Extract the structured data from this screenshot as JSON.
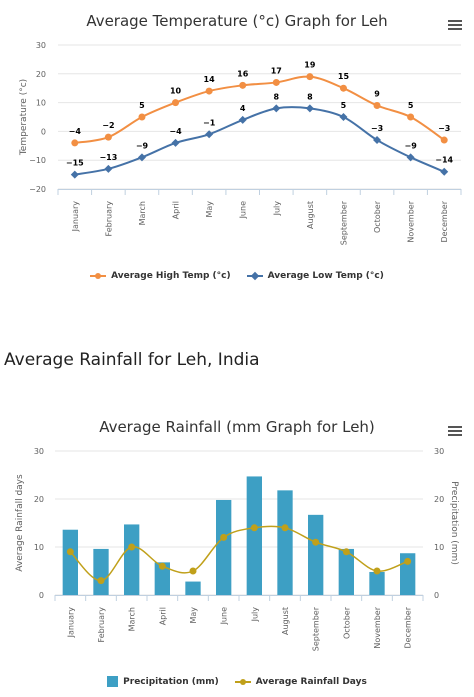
{
  "section_heading": "Average Rainfall for Leh, India",
  "chart_data": [
    {
      "type": "line",
      "title": "Average Temperature (°c) Graph for Leh",
      "xlabel": "",
      "ylabel": "Temperature (°c)",
      "ylim": [
        -20,
        30
      ],
      "yticks": [
        "30",
        "20",
        "10",
        "0",
        "−10",
        "−20"
      ],
      "categories": [
        "January",
        "February",
        "March",
        "April",
        "May",
        "June",
        "July",
        "August",
        "September",
        "October",
        "November",
        "December"
      ],
      "series": [
        {
          "name": "Average High Temp (°c)",
          "color": "#f28f43",
          "marker": "circle",
          "values": [
            -4,
            -2,
            5,
            10,
            14,
            16,
            17,
            19,
            15,
            9,
            5,
            -3
          ],
          "labels": [
            "−4",
            "−2",
            "5",
            "10",
            "14",
            "16",
            "17",
            "19",
            "15",
            "9",
            "5",
            "−3"
          ]
        },
        {
          "name": "Average Low Temp (°c)",
          "color": "#4572a7",
          "marker": "diamond",
          "values": [
            -15,
            -13,
            -9,
            -4,
            -1,
            4,
            8,
            8,
            5,
            -3,
            -9,
            -14
          ],
          "labels": [
            "−15",
            "−13",
            "−9",
            "−4",
            "−1",
            "4",
            "8",
            "8",
            "5",
            "−3",
            "−9",
            "−14"
          ]
        }
      ],
      "grid": true,
      "legend_position": "bottom"
    },
    {
      "type": "bar",
      "title": "Average Rainfall (mm Graph for Leh)",
      "ylabel_left": "Average Rainfall days",
      "ylabel_right": "Precipitation (mm)",
      "ylim": [
        0,
        30
      ],
      "yticks": [
        "30",
        "20",
        "10",
        "0"
      ],
      "categories": [
        "January",
        "February",
        "March",
        "April",
        "May",
        "June",
        "July",
        "August",
        "September",
        "October",
        "November",
        "December"
      ],
      "series": [
        {
          "name": "Precipitation (mm)",
          "kind": "bar",
          "color": "#3d9fc4",
          "values": [
            13.6,
            9.6,
            14.7,
            6.8,
            2.8,
            19.8,
            24.7,
            21.8,
            16.7,
            9.6,
            4.8,
            8.7
          ]
        },
        {
          "name": "Average Rainfall Days",
          "kind": "line",
          "color": "#c0a01a",
          "values": [
            9,
            3,
            10,
            6,
            5,
            12,
            14,
            14,
            11,
            9,
            5,
            7
          ]
        }
      ],
      "grid": true,
      "legend_position": "bottom"
    }
  ],
  "icons": {
    "menu": "hamburger-menu-icon"
  }
}
